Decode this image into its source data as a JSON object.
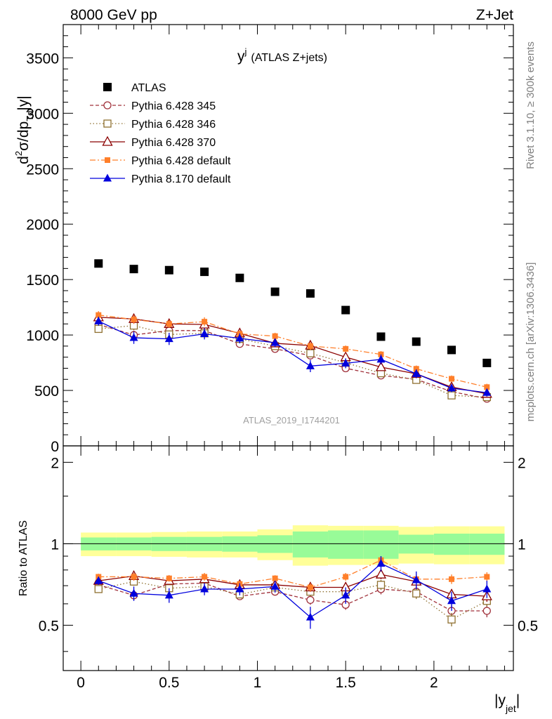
{
  "header": {
    "left_label": "8000 GeV pp",
    "right_label": "Z+Jet"
  },
  "side_labels": {
    "rivet": "Rivet 3.1.10, ≥ 300k events",
    "mcplots": "mcplots.cern.ch [arXiv:1306.3436]"
  },
  "chart_data": [
    {
      "type": "scatter",
      "title_main": "y",
      "title_sup": "j",
      "title_rest": "(ATLAS Z+jets)",
      "analysis_label": "ATLAS_2019_I1744201",
      "ylabel_parts": {
        "d": "d",
        "two": "2",
        "sigma": "σ/dp",
        "sub": "Td",
        "tail": "|y|"
      },
      "ylim": [
        0,
        3800
      ],
      "xlim": [
        -0.1,
        2.45
      ],
      "yticks": [
        0,
        500,
        1000,
        1500,
        2000,
        2500,
        3000,
        3500
      ],
      "ytick_labels": [
        "0",
        "500",
        "1000",
        "1500",
        "2000",
        "2500",
        "3000",
        "3500"
      ],
      "x": [
        0.1,
        0.3,
        0.5,
        0.7,
        0.9,
        1.1,
        1.3,
        1.5,
        1.7,
        1.9,
        2.1,
        2.3
      ],
      "series": [
        {
          "name": "ATLAS",
          "color": "#000000",
          "marker": "square-filled",
          "line": "none",
          "values": [
            1645,
            1595,
            1585,
            1570,
            1515,
            1390,
            1375,
            1225,
            985,
            940,
            865,
            748
          ]
        },
        {
          "name": "Pythia 6.428 345",
          "color": "#a0303a",
          "marker": "circle-open",
          "line": "dashed",
          "values": [
            1095,
            1000,
            1040,
            1040,
            920,
            875,
            815,
            700,
            635,
            600,
            490,
            425
          ],
          "errors": [
            35,
            40,
            35,
            40,
            30,
            30,
            35,
            30,
            30,
            30,
            30,
            30
          ]
        },
        {
          "name": "Pythia 6.428 346",
          "color": "#8f7030",
          "marker": "square-open",
          "line": "dotted",
          "values": [
            1055,
            1085,
            1005,
            1015,
            965,
            900,
            835,
            750,
            655,
            595,
            455,
            440
          ],
          "errors": [
            35,
            40,
            35,
            40,
            30,
            30,
            35,
            30,
            30,
            30,
            30,
            30
          ]
        },
        {
          "name": "Pythia 6.428 370",
          "color": "#8b0000",
          "marker": "triangle-open",
          "line": "solid",
          "values": [
            1160,
            1145,
            1100,
            1095,
            1015,
            925,
            905,
            800,
            710,
            650,
            530,
            470
          ],
          "errors": [
            35,
            40,
            35,
            40,
            30,
            30,
            35,
            30,
            30,
            30,
            30,
            30
          ]
        },
        {
          "name": "Pythia 6.428 default",
          "color": "#ff7f2a",
          "marker": "square-filled-small",
          "line": "dashdot",
          "values": [
            1180,
            1140,
            1100,
            1120,
            1010,
            990,
            900,
            875,
            825,
            695,
            605,
            530
          ],
          "errors": [
            35,
            40,
            35,
            40,
            30,
            30,
            35,
            30,
            30,
            30,
            30,
            30
          ]
        },
        {
          "name": "Pythia 8.170 default",
          "color": "#0000dd",
          "marker": "triangle-filled",
          "line": "solid",
          "values": [
            1125,
            975,
            965,
            1010,
            970,
            930,
            720,
            745,
            780,
            650,
            520,
            480
          ],
          "errors": [
            40,
            55,
            55,
            50,
            45,
            40,
            55,
            45,
            45,
            40,
            35,
            35
          ]
        }
      ]
    },
    {
      "type": "scatter",
      "ylabel": "Ratio to ATLAS",
      "xlabel_main": "|y",
      "xlabel_sub": "jet",
      "xlabel_tail": "|",
      "ylim": [
        0.34,
        2.3
      ],
      "xlim": [
        -0.1,
        2.45
      ],
      "yticks": [
        0.5,
        1,
        2
      ],
      "ytick_labels": [
        "0.5",
        "1",
        "2"
      ],
      "xticks": [
        0,
        0.5,
        1,
        1.5,
        2
      ],
      "xtick_labels": [
        "0",
        "0.5",
        "1",
        "1.5",
        "2"
      ],
      "x": [
        0.1,
        0.3,
        0.5,
        0.7,
        0.9,
        1.1,
        1.3,
        1.5,
        1.7,
        1.9,
        2.1,
        2.3
      ],
      "band_edges": [
        0,
        0.2,
        0.4,
        0.6,
        0.8,
        1.0,
        1.2,
        1.4,
        1.6,
        1.8,
        2.0,
        2.2,
        2.4
      ],
      "band_inner": [
        0.055,
        0.055,
        0.06,
        0.06,
        0.065,
        0.075,
        0.11,
        0.12,
        0.12,
        0.08,
        0.09,
        0.09
      ],
      "band_outer": [
        0.1,
        0.1,
        0.105,
        0.11,
        0.11,
        0.13,
        0.17,
        0.165,
        0.165,
        0.155,
        0.16,
        0.16
      ],
      "band_colors": {
        "inner": "#98fb98",
        "outer": "#ffff99"
      },
      "series": [
        {
          "name": "Pythia 6.428 345",
          "color": "#a0303a",
          "marker": "circle-open",
          "line": "dashed",
          "values": [
            0.705,
            0.645,
            0.71,
            0.715,
            0.64,
            0.665,
            0.62,
            0.595,
            0.68,
            0.665,
            0.565,
            0.565
          ],
          "errors": [
            0.02,
            0.025,
            0.02,
            0.025,
            0.02,
            0.02,
            0.025,
            0.025,
            0.03,
            0.03,
            0.03,
            0.03
          ]
        },
        {
          "name": "Pythia 6.428 346",
          "color": "#8f7030",
          "marker": "square-open",
          "line": "dotted",
          "values": [
            0.68,
            0.725,
            0.685,
            0.695,
            0.65,
            0.69,
            0.665,
            0.665,
            0.705,
            0.655,
            0.525,
            0.615
          ],
          "errors": [
            0.02,
            0.025,
            0.02,
            0.025,
            0.02,
            0.02,
            0.025,
            0.025,
            0.03,
            0.03,
            0.03,
            0.03
          ]
        },
        {
          "name": "Pythia 6.428 370",
          "color": "#8b0000",
          "marker": "triangle-open",
          "line": "solid",
          "values": [
            0.73,
            0.76,
            0.73,
            0.74,
            0.705,
            0.705,
            0.69,
            0.69,
            0.77,
            0.725,
            0.65,
            0.64
          ],
          "errors": [
            0.02,
            0.025,
            0.02,
            0.025,
            0.02,
            0.02,
            0.025,
            0.025,
            0.03,
            0.03,
            0.03,
            0.03
          ]
        },
        {
          "name": "Pythia 6.428 default",
          "color": "#ff7f2a",
          "marker": "square-filled-small",
          "line": "dashdot",
          "values": [
            0.755,
            0.755,
            0.745,
            0.755,
            0.71,
            0.745,
            0.69,
            0.755,
            0.87,
            0.74,
            0.74,
            0.755
          ],
          "errors": [
            0.02,
            0.025,
            0.02,
            0.025,
            0.02,
            0.02,
            0.025,
            0.025,
            0.03,
            0.03,
            0.03,
            0.03
          ]
        },
        {
          "name": "Pythia 8.170 default",
          "color": "#0000dd",
          "marker": "triangle-filled",
          "line": "solid",
          "values": [
            0.73,
            0.655,
            0.645,
            0.68,
            0.68,
            0.695,
            0.535,
            0.645,
            0.845,
            0.735,
            0.615,
            0.68
          ],
          "errors": [
            0.025,
            0.04,
            0.04,
            0.035,
            0.035,
            0.035,
            0.05,
            0.045,
            0.055,
            0.055,
            0.05,
            0.05
          ]
        }
      ]
    }
  ]
}
